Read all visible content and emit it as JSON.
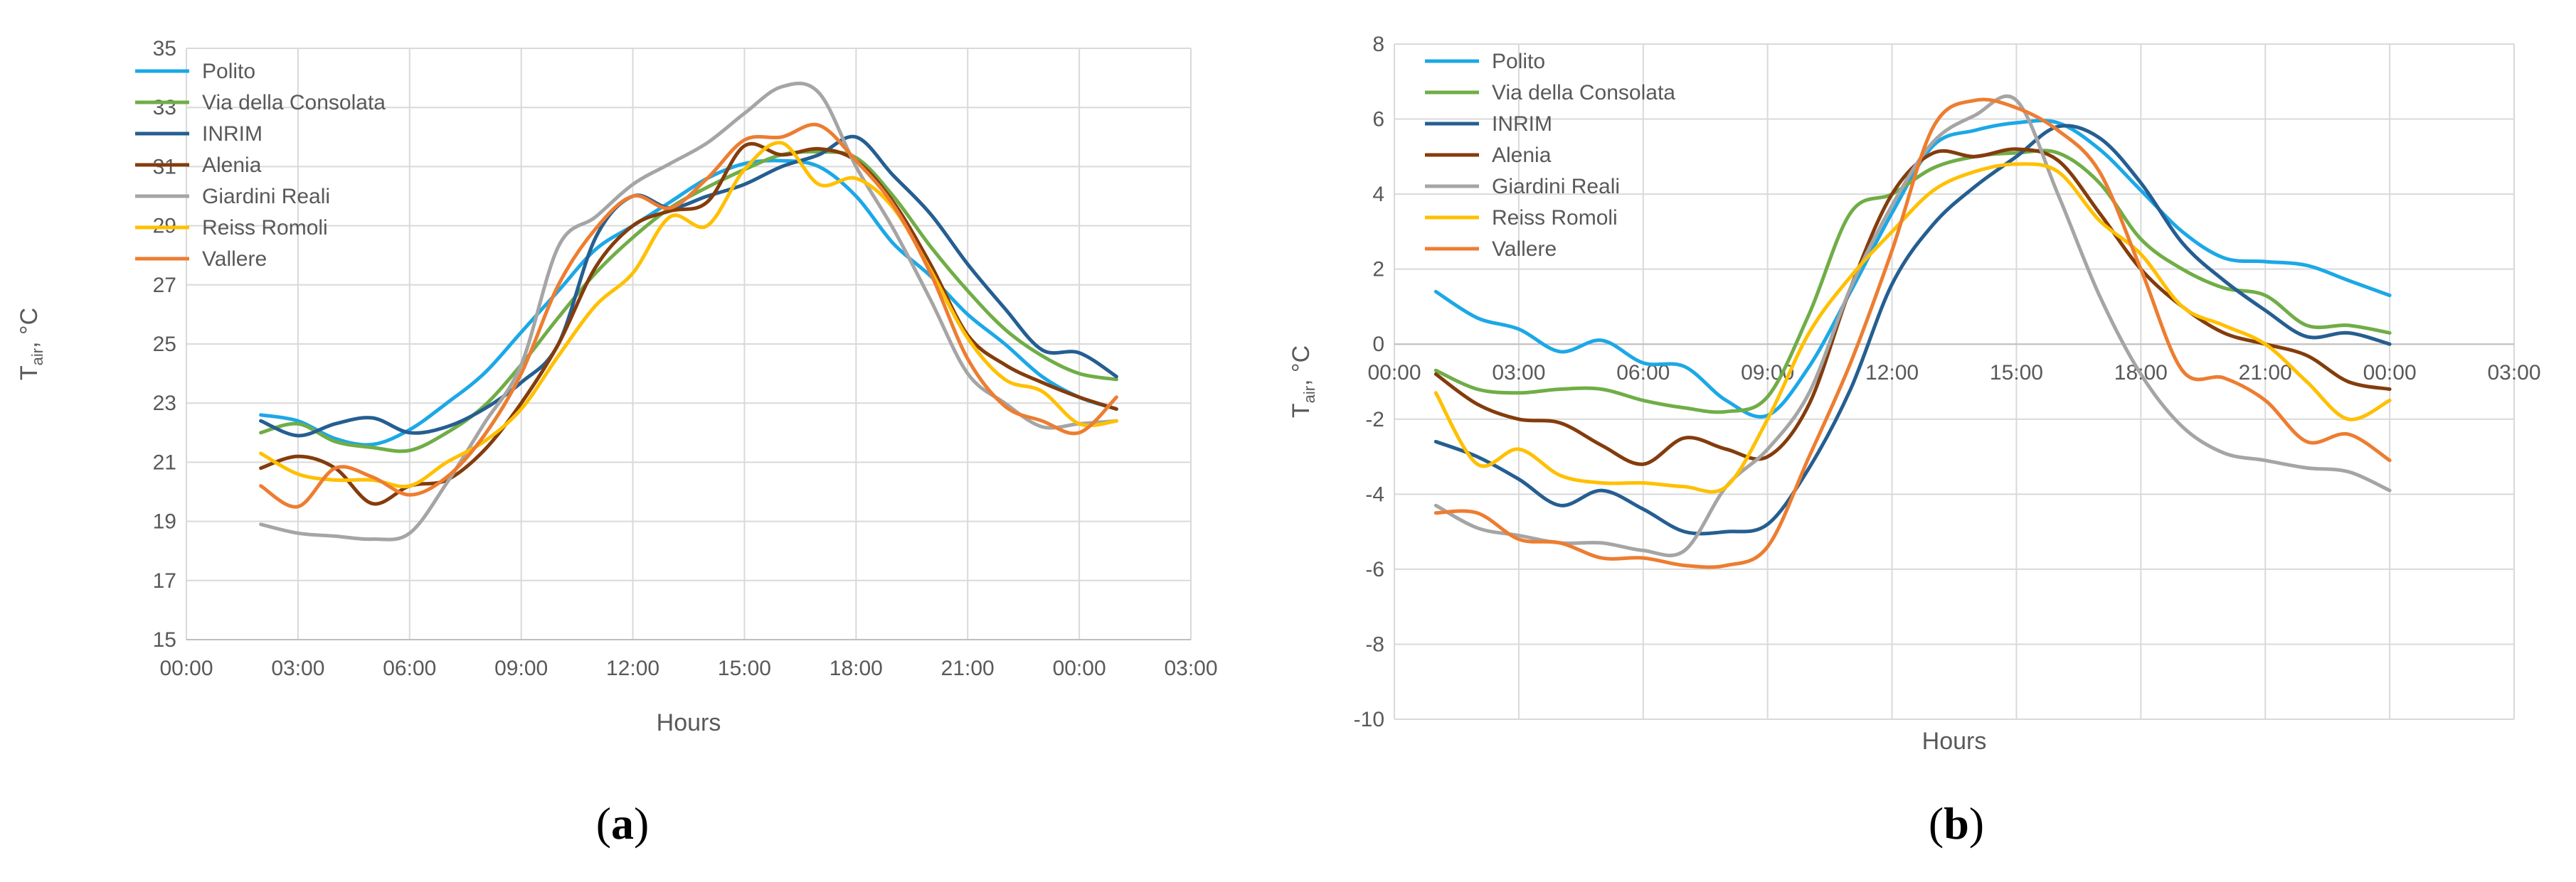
{
  "chart_data": [
    {
      "type": "line",
      "panel_label": "a",
      "title": "",
      "xlabel": "Hours",
      "ylabel": "T",
      "ylabel_sub": "air",
      "ylabel_unit": ", °C",
      "xlim": [
        0,
        27
      ],
      "ylim": [
        15,
        35
      ],
      "x_ticks": [
        0,
        3,
        6,
        9,
        12,
        15,
        18,
        21,
        24,
        27
      ],
      "x_tick_labels": [
        "00:00",
        "03:00",
        "06:00",
        "09:00",
        "12:00",
        "15:00",
        "18:00",
        "21:00",
        "00:00",
        "03:00"
      ],
      "y_ticks": [
        15,
        17,
        19,
        21,
        23,
        25,
        27,
        29,
        31,
        33,
        35
      ],
      "y_tick_labels": [
        "15",
        "17",
        "19",
        "21",
        "23",
        "25",
        "27",
        "29",
        "31",
        "33",
        "35"
      ],
      "grid": true,
      "legend_position": "top-left",
      "x": [
        2,
        3,
        4,
        5,
        6,
        7,
        8,
        9,
        10,
        11,
        12,
        13,
        14,
        15,
        16,
        17,
        18,
        19,
        20,
        21,
        22,
        23,
        24,
        25
      ],
      "series": [
        {
          "name": "Polito",
          "color": "#1CA8E6",
          "values": [
            22.6,
            22.4,
            21.8,
            21.6,
            22.1,
            23.0,
            24.0,
            25.4,
            26.8,
            28.2,
            29.0,
            29.8,
            30.6,
            31.1,
            31.2,
            31.0,
            30.0,
            28.4,
            27.3,
            26.0,
            25.0,
            23.9,
            23.2,
            22.8
          ]
        },
        {
          "name": "Via della Consolata",
          "color": "#70AD47",
          "values": [
            22.0,
            22.3,
            21.7,
            21.5,
            21.4,
            22.0,
            22.9,
            24.3,
            25.9,
            27.4,
            28.6,
            29.6,
            30.3,
            30.9,
            31.4,
            31.5,
            31.3,
            30.0,
            28.3,
            26.8,
            25.5,
            24.6,
            24.0,
            23.8
          ]
        },
        {
          "name": "INRIM",
          "color": "#255E91",
          "values": [
            22.4,
            21.9,
            22.3,
            22.5,
            22.0,
            22.2,
            22.8,
            23.7,
            25.0,
            28.6,
            30.0,
            29.6,
            30.0,
            30.4,
            31.0,
            31.4,
            32.0,
            30.7,
            29.4,
            27.7,
            26.2,
            24.8,
            24.7,
            23.9
          ]
        },
        {
          "name": "Alenia",
          "color": "#843C0C",
          "values": [
            20.8,
            21.2,
            20.8,
            19.6,
            20.2,
            20.4,
            21.4,
            23.0,
            25.0,
            27.6,
            29.0,
            29.5,
            29.8,
            31.7,
            31.4,
            31.6,
            31.2,
            29.8,
            27.7,
            25.3,
            24.3,
            23.7,
            23.2,
            22.8
          ]
        },
        {
          "name": "Giardini Reali",
          "color": "#A5A5A5",
          "values": [
            18.9,
            18.6,
            18.5,
            18.4,
            18.6,
            20.3,
            22.3,
            24.3,
            28.3,
            29.3,
            30.4,
            31.1,
            31.8,
            32.8,
            33.7,
            33.5,
            31.0,
            28.9,
            26.5,
            24.0,
            23.0,
            22.2,
            22.3,
            22.4
          ]
        },
        {
          "name": "Reiss Romoli",
          "color": "#FFC000",
          "values": [
            21.3,
            20.6,
            20.4,
            20.4,
            20.2,
            21.0,
            21.7,
            22.8,
            24.6,
            26.3,
            27.4,
            29.3,
            29.0,
            30.9,
            31.8,
            30.4,
            30.6,
            29.6,
            27.5,
            25.2,
            23.8,
            23.4,
            22.3,
            22.4
          ]
        },
        {
          "name": "Vallere",
          "color": "#ED7D31",
          "values": [
            20.2,
            19.5,
            20.8,
            20.5,
            19.9,
            20.5,
            21.9,
            24.0,
            27.0,
            28.9,
            30.0,
            29.6,
            30.6,
            31.9,
            32.0,
            32.4,
            31.2,
            29.7,
            27.4,
            24.5,
            22.9,
            22.4,
            22.0,
            23.2
          ]
        }
      ]
    },
    {
      "type": "line",
      "panel_label": "b",
      "title": "",
      "xlabel": "Hours",
      "ylabel": "T",
      "ylabel_sub": "air",
      "ylabel_unit": ", °C",
      "xlim": [
        0,
        27
      ],
      "ylim": [
        -10,
        8
      ],
      "x_axis_crosses_at": 0,
      "x_ticks": [
        0,
        3,
        6,
        9,
        12,
        15,
        18,
        21,
        24,
        27
      ],
      "x_tick_labels": [
        "00:00",
        "03:00",
        "06:00",
        "09:00",
        "12:00",
        "15:00",
        "18:00",
        "21:00",
        "00:00",
        "03:00"
      ],
      "y_ticks": [
        -10,
        -8,
        -6,
        -4,
        -2,
        0,
        2,
        4,
        6,
        8
      ],
      "y_tick_labels": [
        "-10",
        "-8",
        "-6",
        "-4",
        "-2",
        "0",
        "2",
        "4",
        "6",
        "8"
      ],
      "grid": true,
      "legend_position": "top-left",
      "x": [
        1,
        2,
        3,
        4,
        5,
        6,
        7,
        8,
        9,
        10,
        11,
        12,
        13,
        14,
        15,
        16,
        17,
        18,
        19,
        20,
        21,
        22,
        23,
        24
      ],
      "series": [
        {
          "name": "Polito",
          "color": "#1CA8E6",
          "values": [
            1.4,
            0.7,
            0.4,
            -0.2,
            0.1,
            -0.5,
            -0.6,
            -1.5,
            -1.9,
            -0.6,
            1.4,
            3.5,
            5.3,
            5.7,
            5.9,
            5.9,
            5.2,
            4.1,
            3.0,
            2.3,
            2.2,
            2.1,
            1.7,
            1.3
          ]
        },
        {
          "name": "Via della Consolata",
          "color": "#70AD47",
          "values": [
            -0.7,
            -1.2,
            -1.3,
            -1.2,
            -1.2,
            -1.5,
            -1.7,
            -1.8,
            -1.4,
            0.8,
            3.5,
            4.0,
            4.7,
            5.0,
            5.1,
            5.1,
            4.3,
            2.8,
            2.0,
            1.5,
            1.3,
            0.5,
            0.5,
            0.3
          ]
        },
        {
          "name": "INRIM",
          "color": "#255E91",
          "values": [
            -2.6,
            -3.0,
            -3.6,
            -4.3,
            -3.9,
            -4.4,
            -5.0,
            -5.0,
            -4.8,
            -3.3,
            -1.2,
            1.6,
            3.2,
            4.2,
            5.0,
            5.8,
            5.5,
            4.3,
            2.7,
            1.7,
            0.9,
            0.2,
            0.3,
            0.0
          ]
        },
        {
          "name": "Alenia",
          "color": "#843C0C",
          "values": [
            -0.8,
            -1.6,
            -2.0,
            -2.1,
            -2.7,
            -3.2,
            -2.5,
            -2.8,
            -3.0,
            -1.6,
            1.5,
            4.0,
            5.1,
            5.0,
            5.2,
            4.9,
            3.5,
            2.0,
            1.0,
            0.3,
            0.0,
            -0.3,
            -1.0,
            -1.2
          ]
        },
        {
          "name": "Giardini Reali",
          "color": "#A5A5A5",
          "values": [
            -4.3,
            -4.9,
            -5.1,
            -5.3,
            -5.3,
            -5.5,
            -5.5,
            -3.8,
            -2.8,
            -1.3,
            1.5,
            3.7,
            5.4,
            6.1,
            6.5,
            4.0,
            1.3,
            -0.8,
            -2.2,
            -2.9,
            -3.1,
            -3.3,
            -3.4,
            -3.9
          ]
        },
        {
          "name": "Reiss Romoli",
          "color": "#FFC000",
          "values": [
            -1.3,
            -3.2,
            -2.8,
            -3.5,
            -3.7,
            -3.7,
            -3.8,
            -3.8,
            -2.0,
            0.3,
            1.8,
            3.0,
            4.1,
            4.6,
            4.8,
            4.6,
            3.3,
            2.4,
            1.0,
            0.5,
            0.0,
            -1.0,
            -2.0,
            -1.5
          ]
        },
        {
          "name": "Vallere",
          "color": "#ED7D31",
          "values": [
            -4.5,
            -4.5,
            -5.2,
            -5.3,
            -5.7,
            -5.7,
            -5.9,
            -5.9,
            -5.4,
            -3.0,
            -0.5,
            2.5,
            5.8,
            6.5,
            6.3,
            5.7,
            4.6,
            2.0,
            -0.7,
            -0.9,
            -1.5,
            -2.6,
            -2.4,
            -3.1
          ]
        }
      ]
    }
  ]
}
